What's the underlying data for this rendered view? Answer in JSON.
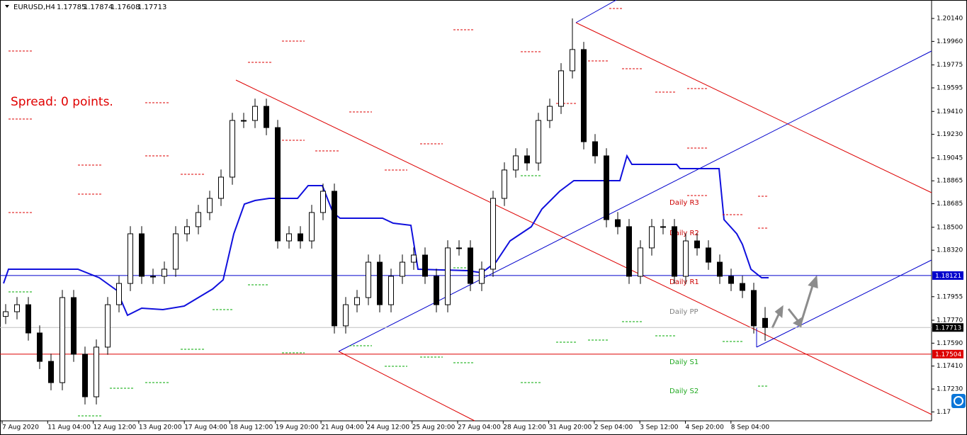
{
  "chart_data": {
    "type": "candlestick",
    "symbol": "EURUSD,H4",
    "ohlc_header": [
      1.17785,
      1.17874,
      1.17608,
      1.17713
    ],
    "spread_text": "Spread: 0 points.",
    "pivot_labels": [
      "Daily R3",
      "Daily R2",
      "Daily R1",
      "Daily PP",
      "Daily S1",
      "Daily S2"
    ],
    "time_labels": [
      "7 Aug 2020",
      "11 Aug 04:00",
      "12 Aug 12:00",
      "13 Aug 20:00",
      "17 Aug 04:00",
      "18 Aug 12:00",
      "19 Aug 20:00",
      "21 Aug 04:00",
      "24 Aug 12:00",
      "25 Aug 20:00",
      "27 Aug 04:00",
      "28 Aug 12:00",
      "31 Aug 20:00",
      "2 Sep 04:00",
      "3 Sep 12:00",
      "4 Sep 20:00",
      "8 Sep 04:00"
    ],
    "ylim": [
      1.1698,
      1.20285
    ],
    "yticks": [
      {
        "value": 1.2014,
        "label": "1.20140"
      },
      {
        "value": 1.1996,
        "label": "1.19960"
      },
      1.19775,
      1.19595,
      {
        "value": 1.1941,
        "label": "1.19410"
      },
      {
        "value": 1.1923,
        "label": "1.19230"
      },
      1.19045,
      1.18865,
      1.18685,
      {
        "value": 1.185,
        "label": "1.18500"
      },
      {
        "value": 1.1832,
        "label": "1.18320"
      },
      1.17955,
      {
        "value": 1.1777,
        "label": "1.17770"
      },
      {
        "value": 1.1759,
        "label": "1.17590"
      },
      {
        "value": 1.1741,
        "label": "1.17410"
      },
      {
        "value": 1.1723,
        "label": "1.17230"
      },
      {
        "value": 1.1705,
        "label": "1.17"
      }
    ],
    "price_lines": [
      {
        "value": 1.18121,
        "color": "#0000cc"
      },
      {
        "value": 1.17713,
        "color": "#c0c0c0"
      },
      {
        "value": 1.17504,
        "color": "#dd0000"
      }
    ],
    "open": [
      1.178,
      1.17837,
      1.17892,
      1.1767,
      1.17447,
      1.1728,
      1.17948,
      1.17503,
      1.17169,
      1.17559,
      1.17892,
      1.18059,
      1.18449,
      1.18115,
      1.18115,
      1.18171,
      1.18449,
      1.18505,
      1.18616,
      1.18727,
      1.18894,
      1.19339,
      1.19339,
      1.1945,
      1.19283,
      1.18393,
      1.18449,
      1.18393,
      1.18616,
      1.18783,
      1.17726,
      1.17892,
      1.17948,
      1.18226,
      1.17892,
      1.18115,
      1.18226,
      1.18282,
      1.18115,
      1.17892,
      1.18338,
      1.18338,
      1.18059,
      1.18171,
      1.18727,
      1.1895,
      1.19061,
      1.19005,
      1.19339,
      1.1945,
      1.19729,
      1.19896,
      1.19172,
      1.19061,
      1.1856,
      1.18505,
      1.18115,
      1.18338,
      1.18505,
      1.18505,
      1.18115,
      1.18393,
      1.18338,
      1.18226,
      1.18115,
      1.18059,
      1.18004,
      1.17785
    ],
    "high": [
      1.17897,
      1.17952,
      1.17952,
      1.1773,
      1.17507,
      1.18008,
      1.18008,
      1.17563,
      1.17619,
      1.17952,
      1.18119,
      1.18509,
      1.18509,
      1.18175,
      1.18231,
      1.18509,
      1.18565,
      1.18676,
      1.18787,
      1.18954,
      1.19399,
      1.19399,
      1.1951,
      1.1951,
      1.19343,
      1.18509,
      1.18509,
      1.18676,
      1.18843,
      1.18843,
      1.17952,
      1.18008,
      1.18286,
      1.18286,
      1.18175,
      1.18286,
      1.18342,
      1.18342,
      1.18175,
      1.18398,
      1.18398,
      1.18398,
      1.18231,
      1.18787,
      1.1901,
      1.19121,
      1.19121,
      1.19399,
      1.1951,
      1.19789,
      1.2014,
      1.19956,
      1.19232,
      1.19121,
      1.1862,
      1.18565,
      1.18398,
      1.18565,
      1.18565,
      1.18565,
      1.18453,
      1.18453,
      1.18398,
      1.18286,
      1.18175,
      1.18119,
      1.18064,
      1.17874
    ],
    "low": [
      1.1774,
      1.17777,
      1.1761,
      1.17387,
      1.1722,
      1.1722,
      1.17443,
      1.17109,
      1.17109,
      1.17499,
      1.17832,
      1.17999,
      1.18055,
      1.18055,
      1.18055,
      1.18111,
      1.18389,
      1.18445,
      1.18556,
      1.18667,
      1.18834,
      1.19279,
      1.19279,
      1.19223,
      1.18333,
      1.18333,
      1.18333,
      1.18333,
      1.18556,
      1.17666,
      1.17666,
      1.17832,
      1.17888,
      1.17832,
      1.17832,
      1.18055,
      1.18166,
      1.18055,
      1.17832,
      1.17832,
      1.18278,
      1.17999,
      1.17999,
      1.18111,
      1.18667,
      1.1889,
      1.18945,
      1.18945,
      1.19279,
      1.1939,
      1.19669,
      1.19112,
      1.19001,
      1.185,
      1.18445,
      1.18055,
      1.18055,
      1.18278,
      1.18445,
      1.18055,
      1.18055,
      1.18278,
      1.18166,
      1.18055,
      1.17999,
      1.17944,
      1.17666,
      1.17608
    ],
    "close": [
      1.17837,
      1.17892,
      1.1767,
      1.17447,
      1.1728,
      1.17948,
      1.17503,
      1.17169,
      1.17559,
      1.17892,
      1.18059,
      1.18449,
      1.18115,
      1.18115,
      1.18171,
      1.18449,
      1.18505,
      1.18616,
      1.18727,
      1.18894,
      1.19339,
      1.19339,
      1.1945,
      1.19283,
      1.18393,
      1.18449,
      1.18393,
      1.18616,
      1.18783,
      1.17726,
      1.17892,
      1.17948,
      1.18226,
      1.17892,
      1.18115,
      1.18226,
      1.18282,
      1.18115,
      1.17892,
      1.18338,
      1.18338,
      1.18059,
      1.18171,
      1.18727,
      1.1895,
      1.19061,
      1.19005,
      1.19339,
      1.1945,
      1.19729,
      1.19896,
      1.19172,
      1.19061,
      1.1856,
      1.18505,
      1.18115,
      1.18338,
      1.18505,
      1.18505,
      1.18115,
      1.18393,
      1.18338,
      1.18226,
      1.18115,
      1.18059,
      1.18004,
      1.17726,
      1.17713
    ]
  }
}
